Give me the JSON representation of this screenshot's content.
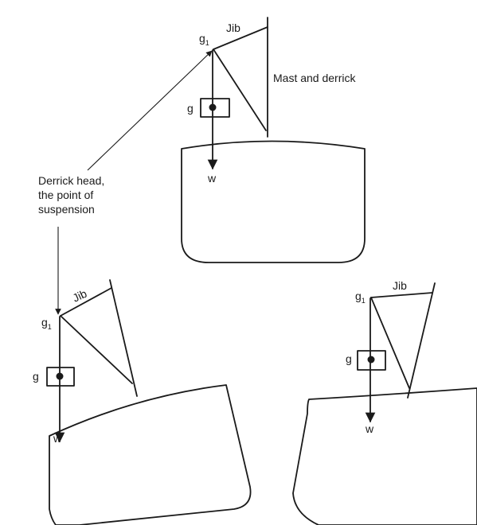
{
  "labels": {
    "jib": "Jib",
    "g1": "g",
    "g1_sub": "1",
    "g": "g",
    "w": "w",
    "mast": "Mast and derrick",
    "derrick_head": [
      "Derrick head,",
      "the point of",
      "suspension"
    ]
  },
  "colors": {
    "ink": "#1a1a1a",
    "background": "#ffffff"
  }
}
